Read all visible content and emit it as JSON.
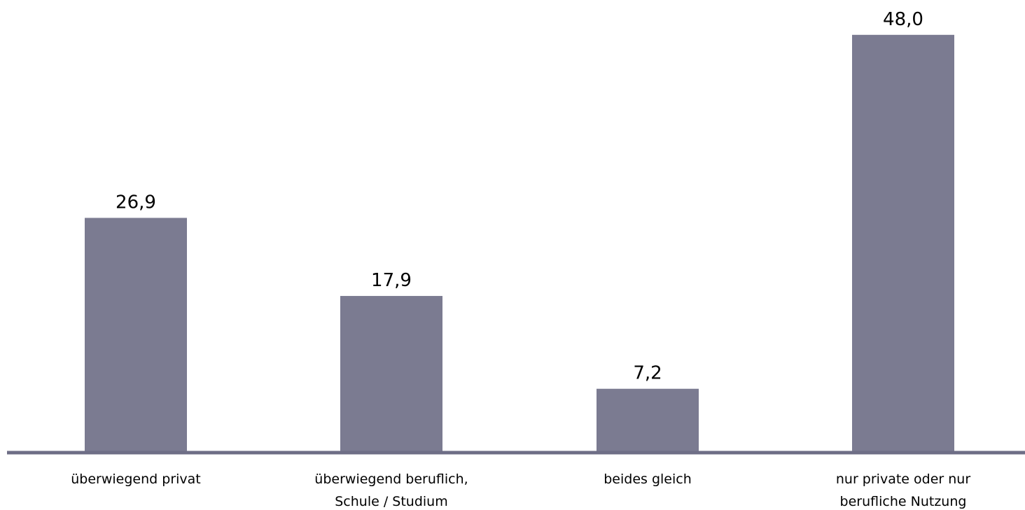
{
  "chart_data": {
    "type": "bar",
    "title": "",
    "xlabel": "",
    "ylabel": "",
    "categories": [
      [
        "überwiegend privat"
      ],
      [
        "überwiegend beruflich,",
        "Schule / Studium"
      ],
      [
        "beides gleich"
      ],
      [
        "nur private oder nur",
        "berufliche Nutzung"
      ]
    ],
    "values": [
      26.9,
      17.9,
      7.2,
      48.0
    ],
    "value_labels": [
      "26,9",
      "17,9",
      "7,2",
      "48,0"
    ],
    "ylim": [
      0,
      50
    ],
    "grid": false,
    "legend": "none",
    "colors": {
      "bar": "#7b7b91",
      "axis": "#6e6e86",
      "text": "#000000"
    }
  }
}
